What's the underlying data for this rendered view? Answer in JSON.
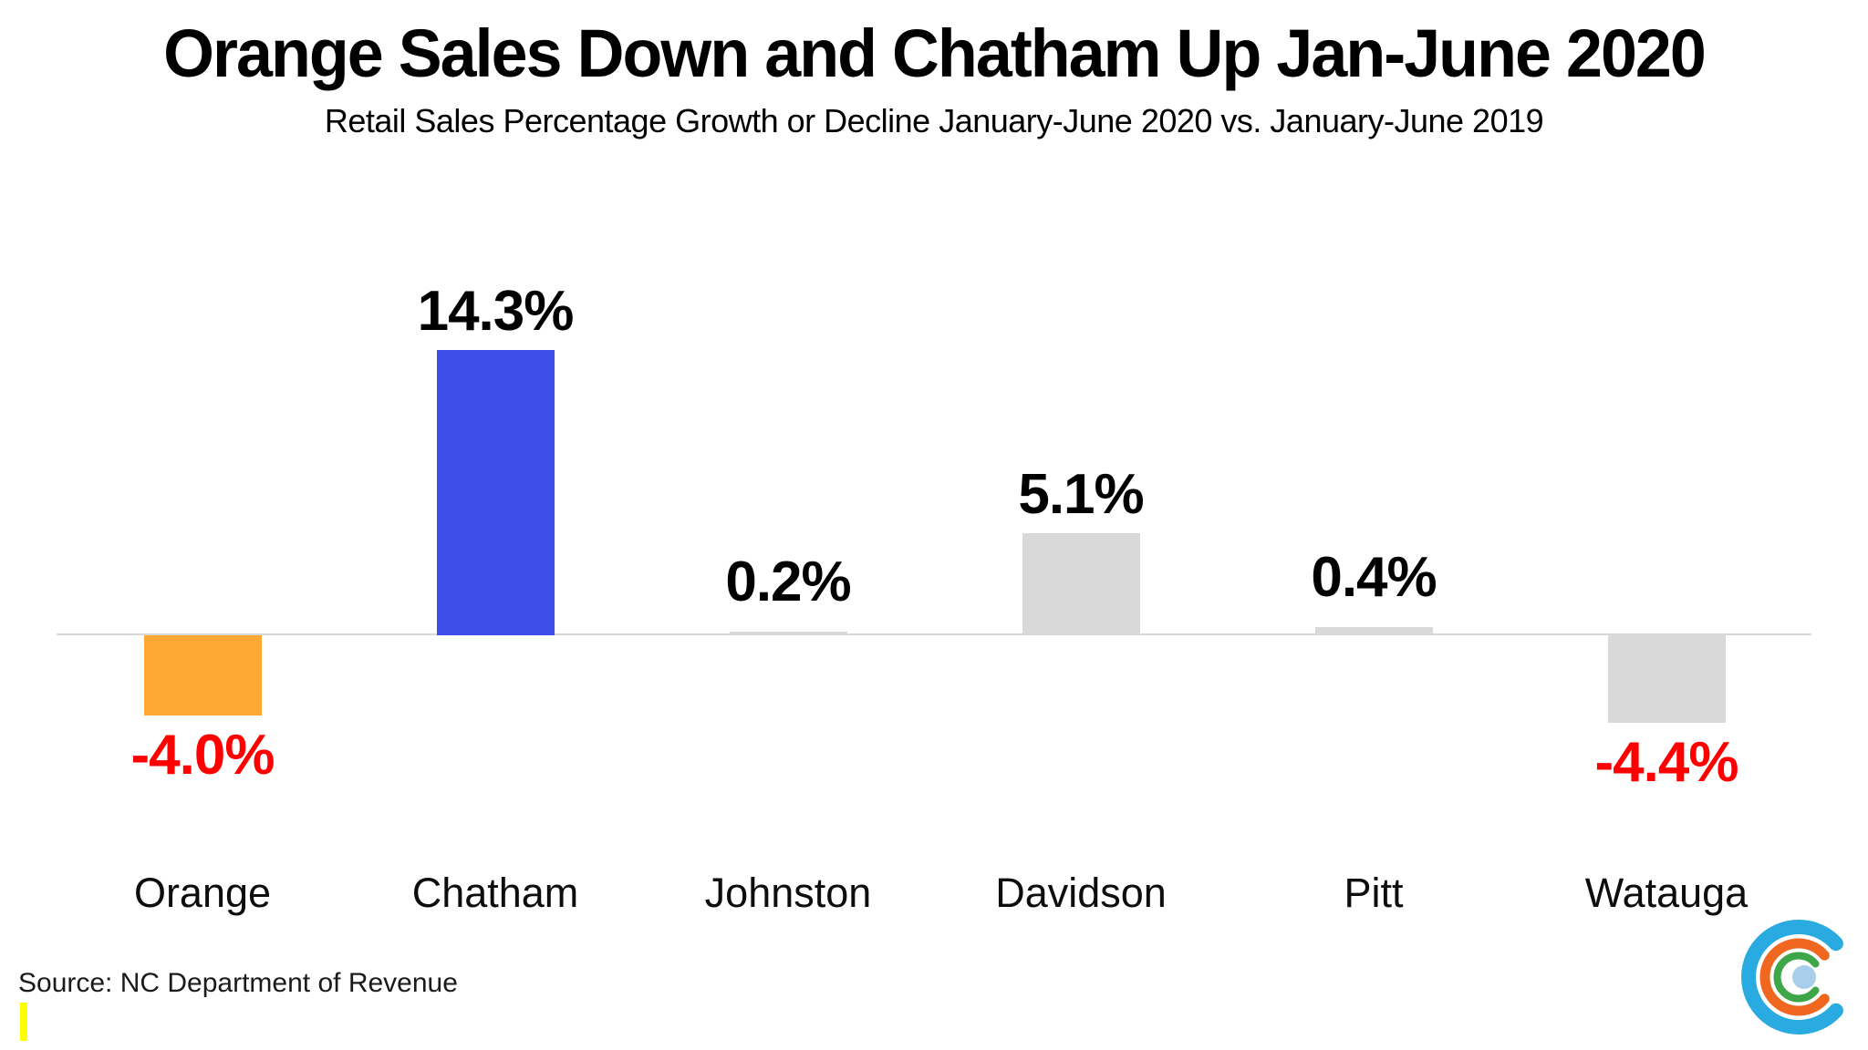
{
  "title": "Orange Sales Down and Chatham Up Jan-June 2020",
  "subtitle": "Retail Sales Percentage Growth or Decline January-June 2020 vs. January-June 2019",
  "source_note": "Source: NC Department of Revenue",
  "colors": {
    "highlight_negative_bar": "#FDA934",
    "highlight_positive_bar": "#3D4FE8",
    "neutral_bar": "#D9D9D9",
    "negative_label": "#FF0000",
    "positive_label": "#000000",
    "axis_line": "#D9D9D9",
    "cursor_highlight": "#FFFF00",
    "logo_blue": "#29ABE2",
    "logo_orange": "#F0681F",
    "logo_green": "#3DA648",
    "logo_center_dot": "#A9CEEC"
  },
  "chart_data": {
    "type": "bar",
    "title": "Orange Sales Down and Chatham Up Jan-June 2020",
    "subtitle": "Retail Sales Percentage Growth or Decline January-June 2020 vs. January-June 2019",
    "categories": [
      "Orange",
      "Chatham",
      "Johnston",
      "Davidson",
      "Pitt",
      "Watauga"
    ],
    "values": [
      -4.0,
      14.3,
      0.2,
      5.1,
      0.4,
      -4.4
    ],
    "data_labels": [
      "-4.0%",
      "14.3%",
      "0.2%",
      "5.1%",
      "0.4%",
      "-4.4%"
    ],
    "bar_colors": [
      "#FDA934",
      "#3D4FE8",
      "#D9D9D9",
      "#D9D9D9",
      "#D9D9D9",
      "#D9D9D9"
    ],
    "label_colors": [
      "#FF0000",
      "#000000",
      "#000000",
      "#000000",
      "#000000",
      "#FF0000"
    ],
    "xlabel": "",
    "ylabel": "",
    "ylim": [
      -5,
      15
    ],
    "grid": false,
    "legend": false,
    "baseline_value": 0
  }
}
